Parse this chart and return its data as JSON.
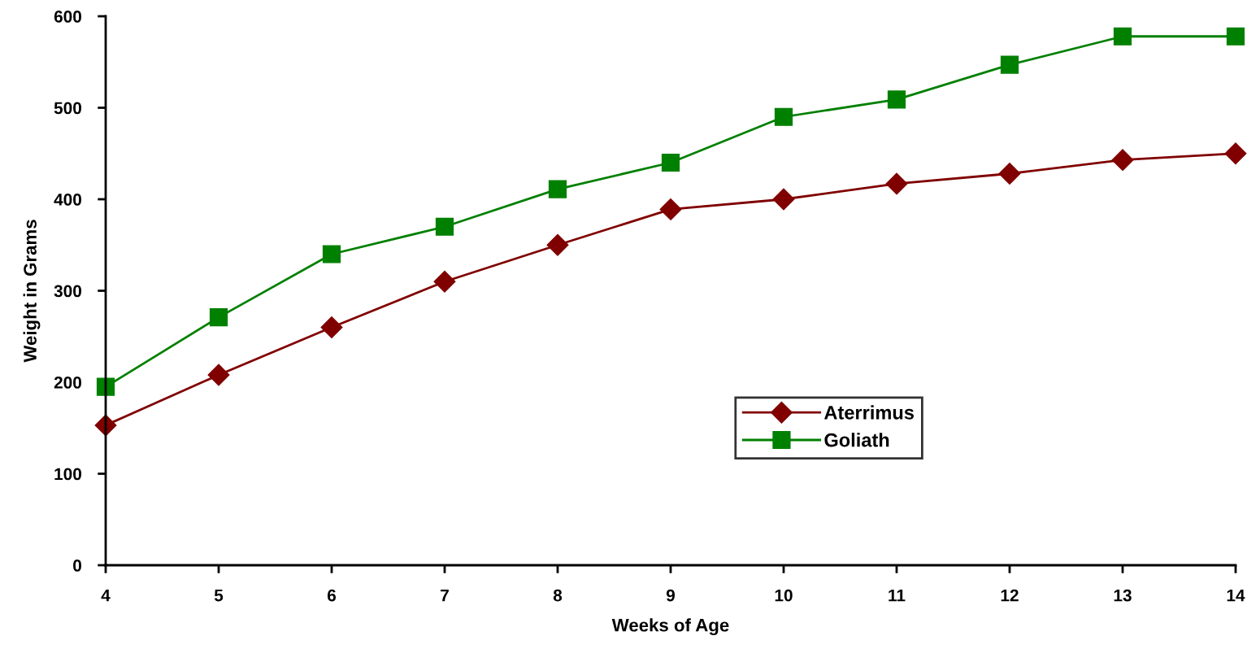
{
  "chart_data": {
    "type": "line",
    "xlabel": "Weeks of Age",
    "ylabel": "Weight in Grams",
    "x": [
      4,
      5,
      6,
      7,
      8,
      9,
      10,
      11,
      12,
      13,
      14
    ],
    "series": [
      {
        "name": "Aterrimus",
        "color": "#800000",
        "marker": "diamond",
        "values": [
          153,
          208,
          260,
          310,
          350,
          389,
          400,
          417,
          428,
          443,
          450
        ]
      },
      {
        "name": "Goliath",
        "color": "#008000",
        "marker": "square",
        "values": [
          195,
          271,
          340,
          370,
          411,
          440,
          490,
          509,
          547,
          578,
          578
        ]
      }
    ],
    "xlim": [
      4,
      14
    ],
    "xticks": [
      4,
      5,
      6,
      7,
      8,
      9,
      10,
      11,
      12,
      13,
      14
    ],
    "ylim": [
      0,
      600
    ],
    "yticks": [
      0,
      100,
      200,
      300,
      400,
      500,
      600
    ],
    "grid": false,
    "legend": "center right",
    "line_style": "solid"
  }
}
